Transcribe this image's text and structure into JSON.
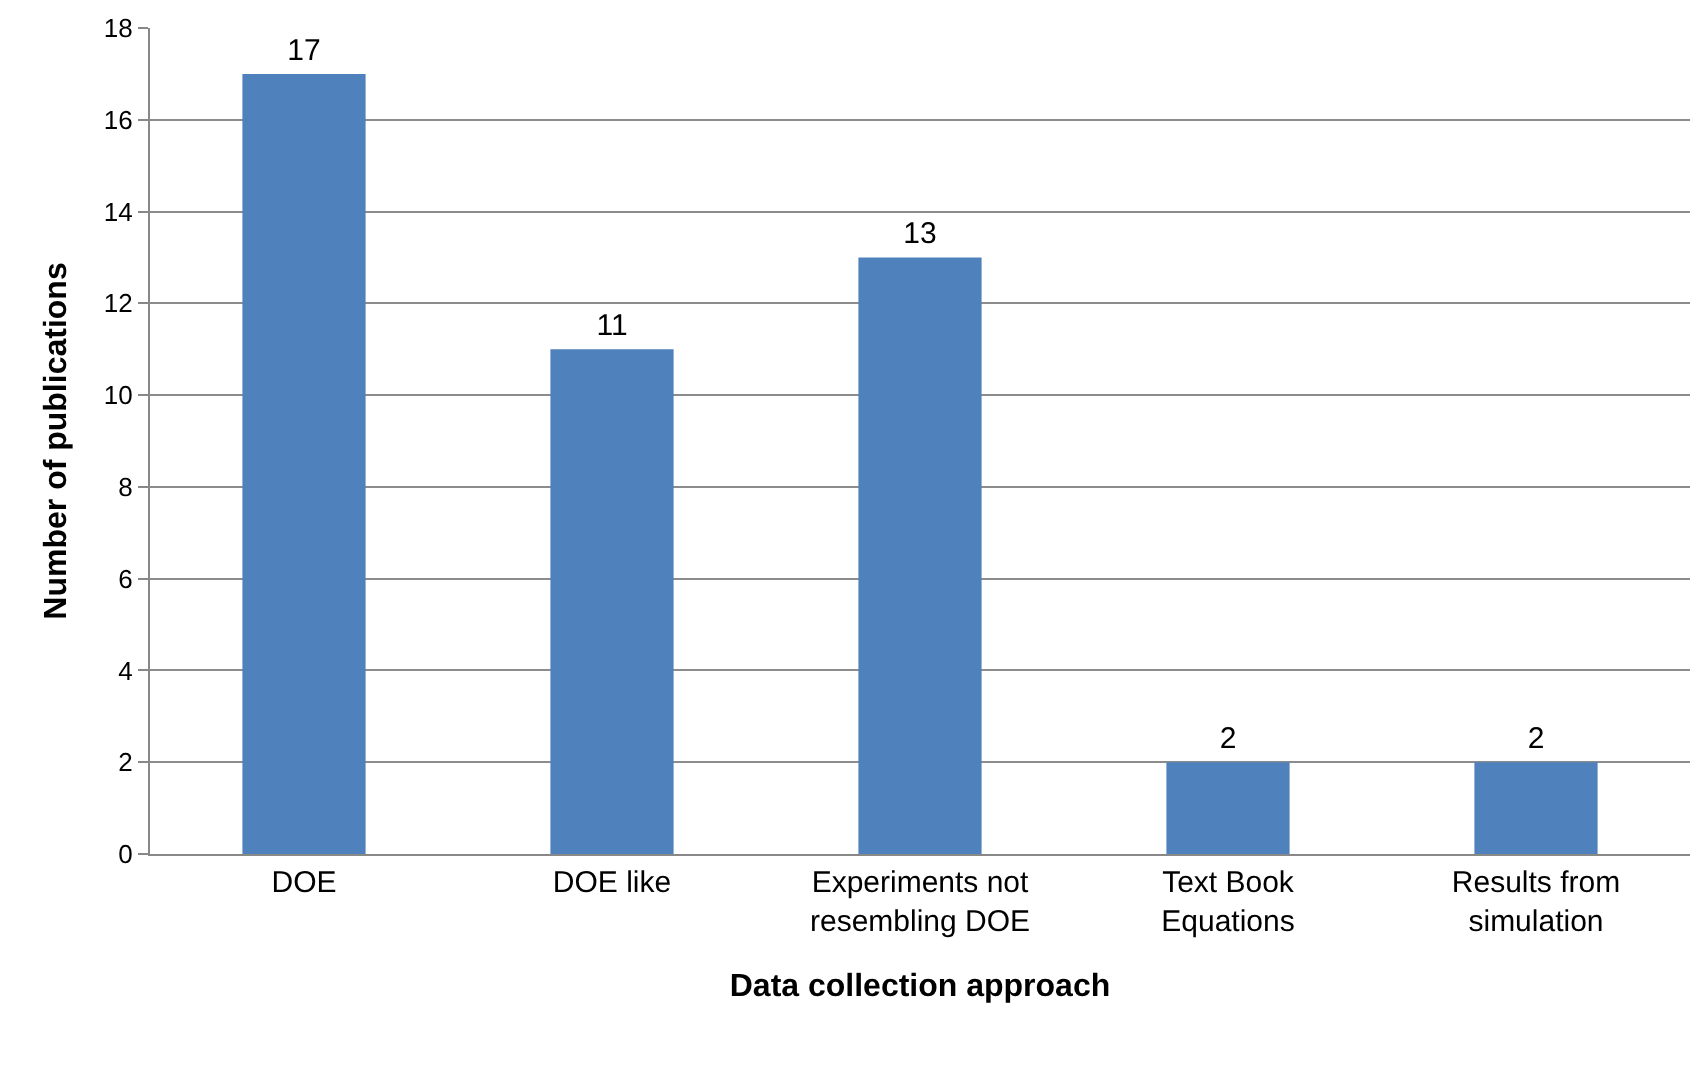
{
  "chart_data": {
    "type": "bar",
    "xlabel": "Data collection approach",
    "ylabel": "Number of publications",
    "categories": [
      "DOE",
      "DOE like",
      "Experiments not resembling DOE",
      "Text Book Equations",
      "Results from simulation"
    ],
    "values": [
      17,
      11,
      13,
      2,
      2
    ],
    "color": "#4f81bd",
    "ylim": [
      0,
      18
    ],
    "yticks": [
      0,
      2,
      4,
      6,
      8,
      10,
      12,
      14,
      16,
      18
    ],
    "grid": "y",
    "data_labels": true
  }
}
